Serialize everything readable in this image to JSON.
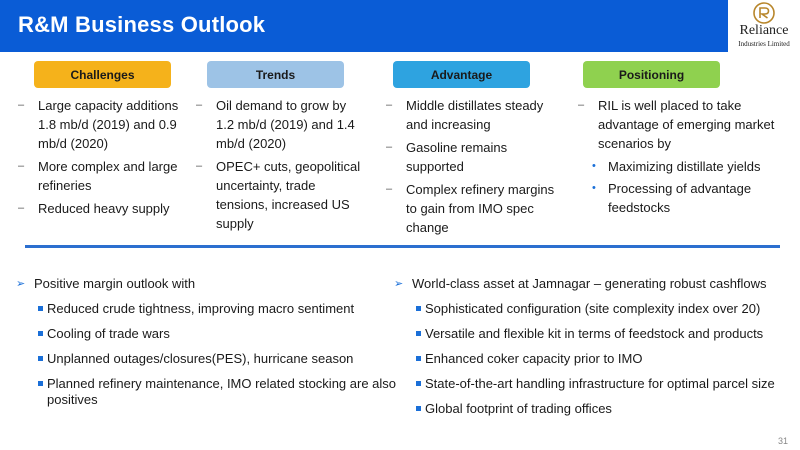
{
  "header": {
    "title": "R&M Business Outlook"
  },
  "logo": {
    "name": "Reliance",
    "subtitle": "Industries Limited"
  },
  "pills": [
    {
      "label": "Challenges",
      "color": "#f5b21b"
    },
    {
      "label": "Trends",
      "color": "#9dc3e6"
    },
    {
      "label": "Advantage",
      "color": "#2ea3e0"
    },
    {
      "label": "Positioning",
      "color": "#8fd14f"
    }
  ],
  "columns": {
    "challenges": [
      "Large capacity additions 1.8 mb/d (2019) and 0.9 mb/d (2020)",
      "More complex and large refineries",
      "Reduced heavy supply"
    ],
    "trends": [
      "Oil demand to grow by 1.2 mb/d (2019) and 1.4 mb/d (2020)",
      "OPEC+ cuts, geopolitical uncertainty, trade tensions, increased US supply"
    ],
    "advantage": [
      "Middle distillates steady and increasing",
      "Gasoline remains supported",
      "Complex refinery margins to gain from IMO spec change"
    ],
    "positioning": {
      "main": "RIL is well placed to take advantage of emerging market scenarios by",
      "sub": [
        "Maximizing distillate yields",
        "Processing of advantage feedstocks"
      ]
    }
  },
  "left_section": {
    "heading": "Positive margin outlook with",
    "items": [
      "Reduced crude tightness, improving macro sentiment",
      "Cooling of trade wars",
      "Unplanned outages/closures(PES), hurricane season",
      "Planned refinery maintenance, IMO related stocking are also positives"
    ]
  },
  "right_section": {
    "heading": "World-class asset at Jamnagar – generating robust cashflows",
    "items": [
      "Sophisticated configuration (site complexity index over 20)",
      "Versatile and flexible kit in terms of feedstock and products",
      "Enhanced coker capacity prior to IMO",
      "State-of-the-art handling infrastructure for optimal parcel size",
      "Global footprint of trading offices"
    ]
  },
  "page_number": "31"
}
